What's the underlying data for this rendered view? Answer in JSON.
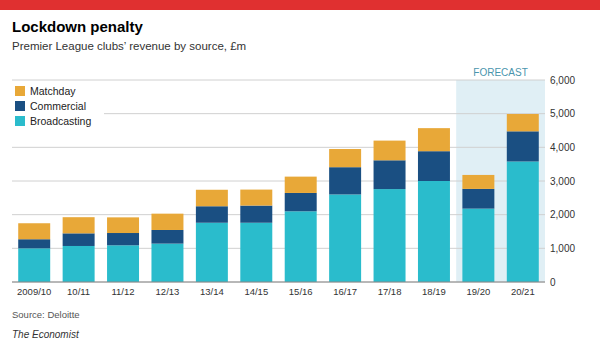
{
  "chart_data": {
    "type": "bar",
    "stacked": true,
    "title": "Lockdown penalty",
    "subtitle": "Premier League clubs’ revenue by source, £m",
    "source": "Source: Deloitte",
    "footer": "The Economist",
    "categories": [
      "2009/10",
      "10/11",
      "11/12",
      "12/13",
      "13/14",
      "14/15",
      "15/16",
      "16/17",
      "17/18",
      "18/19",
      "19/20",
      "20/21"
    ],
    "series": [
      {
        "name": "Broadcasting",
        "color": "#2abccc",
        "values": [
          1000,
          1070,
          1090,
          1140,
          1760,
          1760,
          2100,
          2600,
          2760,
          3000,
          2180,
          3580
        ]
      },
      {
        "name": "Commercial",
        "color": "#1a4f82",
        "values": [
          270,
          375,
          365,
          405,
          490,
          510,
          545,
          810,
          855,
          885,
          585,
          895
        ]
      },
      {
        "name": "Matchday",
        "color": "#e8a838",
        "values": [
          475,
          480,
          465,
          485,
          490,
          475,
          485,
          540,
          585,
          685,
          415,
          515
        ]
      }
    ],
    "annotations": [
      {
        "text": "FORECAST",
        "categories": [
          "19/20",
          "20/21"
        ]
      }
    ],
    "ylim": [
      0,
      6000
    ],
    "yticks": [
      0,
      {
        "value": 1000,
        "label": "1,000"
      },
      {
        "value": 2000,
        "label": "2,000"
      },
      {
        "value": 3000,
        "label": "3,000"
      },
      {
        "value": 4000,
        "label": "4,000"
      },
      {
        "value": 5000,
        "label": "5,000"
      },
      {
        "value": 6000,
        "label": "6,000"
      }
    ],
    "grid": true,
    "legend": "upper left"
  }
}
